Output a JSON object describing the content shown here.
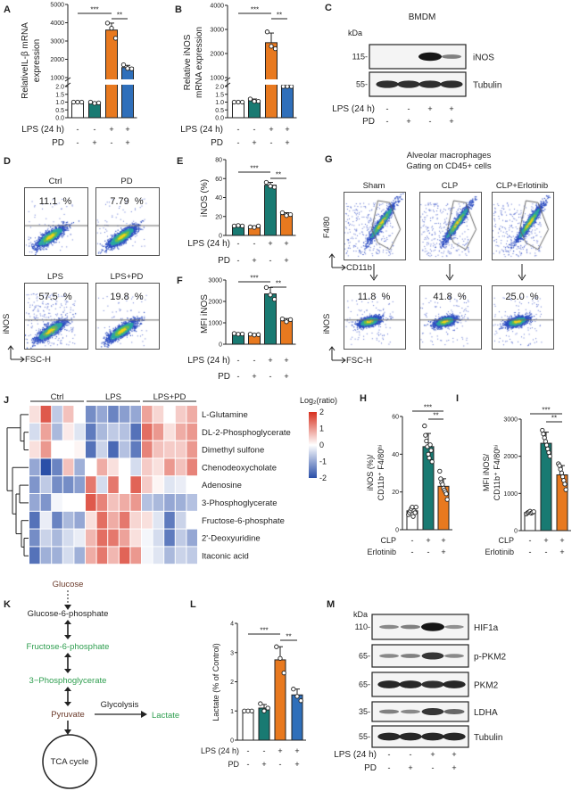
{
  "panel_labels": [
    "A",
    "B",
    "C",
    "D",
    "E",
    "F",
    "G",
    "H",
    "I",
    "J",
    "K",
    "L",
    "M"
  ],
  "colors": {
    "ctrl": "#ffffff",
    "teal": "#197a72",
    "orange": "#e8791f",
    "blue": "#2f6fba",
    "heat_low": "#2a4fa8",
    "heat_high": "#d7301f",
    "pathway_green": "#2e9e4f",
    "pathway_brown": "#6b3a2a"
  },
  "chart_data": [
    {
      "id": "A",
      "type": "bar",
      "ylabel": [
        "RelativeIL-β mRNA",
        "expression"
      ],
      "yaxis_break": [
        2,
        1000
      ],
      "yticks_lower": [
        "0.0",
        "0.5",
        "1.0",
        "1.5",
        "2.0"
      ],
      "yticks_upper": [
        "1000",
        "2000",
        "3000",
        "4000",
        "5000"
      ],
      "values": [
        1.0,
        0.95,
        3600,
        1550
      ],
      "errors": [
        0.03,
        0.05,
        380,
        120
      ],
      "points": [
        [
          1,
          1,
          1
        ],
        [
          1.0,
          0.92,
          0.95
        ],
        [
          3980,
          3700,
          3150
        ],
        [
          1700,
          1500,
          1480
        ]
      ],
      "bar_colors": [
        "ctrl",
        "teal",
        "orange",
        "blue"
      ],
      "conditions": [
        {
          "label": "LPS (24 h)",
          "signs": [
            "-",
            "-",
            "+",
            "+"
          ]
        },
        {
          "label": "PD",
          "signs": [
            "-",
            "+",
            "-",
            "+"
          ]
        }
      ],
      "significance": [
        {
          "label": "***",
          "from": 0,
          "to": 2
        },
        {
          "label": "**",
          "from": 2,
          "to": 3
        }
      ]
    },
    {
      "id": "B",
      "type": "bar",
      "ylabel": [
        "Relative iNOS",
        "mRNA expression"
      ],
      "yaxis_break": [
        2,
        1000
      ],
      "yticks_lower": [
        "0.0",
        "0.5",
        "1.0",
        "1.5",
        "2.0"
      ],
      "yticks_upper": [
        "1000",
        "2000",
        "3000",
        "4000"
      ],
      "values": [
        1.0,
        1.1,
        2450,
        500
      ],
      "errors": [
        0.03,
        0.1,
        400,
        150
      ],
      "points": [
        [
          1,
          1,
          1
        ],
        [
          1.2,
          1.05,
          1.05
        ],
        [
          2900,
          2300,
          2200
        ],
        [
          700,
          450,
          400
        ]
      ],
      "bar_colors": [
        "ctrl",
        "teal",
        "orange",
        "blue"
      ],
      "conditions": [
        {
          "label": "LPS (24 h)",
          "signs": [
            "-",
            "-",
            "+",
            "+"
          ]
        },
        {
          "label": "PD",
          "signs": [
            "-",
            "+",
            "-",
            "+"
          ]
        }
      ],
      "significance": [
        {
          "label": "***",
          "from": 0,
          "to": 2
        },
        {
          "label": "**",
          "from": 2,
          "to": 3
        }
      ]
    },
    {
      "id": "E",
      "type": "bar",
      "ylabel": [
        "iNOS (%)"
      ],
      "ylim": [
        0,
        80
      ],
      "yticks": [
        "0",
        "20",
        "40",
        "60",
        "80"
      ],
      "values": [
        10,
        9,
        53,
        22
      ],
      "errors": [
        1,
        1,
        3,
        2
      ],
      "points": [
        [
          10,
          10.5,
          10
        ],
        [
          9,
          8.5,
          10
        ],
        [
          56,
          52,
          51
        ],
        [
          24,
          21,
          22
        ]
      ],
      "bar_colors": [
        "teal",
        "orange",
        "teal",
        "orange"
      ],
      "conditions": [
        {
          "label": "LPS (24 h)",
          "signs": [
            "-",
            "-",
            "+",
            "+"
          ]
        },
        {
          "label": "PD",
          "signs": [
            "-",
            "+",
            "-",
            "+"
          ]
        }
      ],
      "significance": [
        {
          "label": "***",
          "from": 0,
          "to": 2
        },
        {
          "label": "**",
          "from": 2,
          "to": 3
        }
      ]
    },
    {
      "id": "F",
      "type": "bar",
      "ylabel": [
        "MFI iNOS"
      ],
      "ylim": [
        0,
        3000
      ],
      "yticks": [
        "0",
        "1000",
        "2000",
        "3000"
      ],
      "values": [
        480,
        450,
        2350,
        1100
      ],
      "errors": [
        40,
        40,
        300,
        100
      ],
      "points": [
        [
          500,
          470,
          480
        ],
        [
          470,
          430,
          450
        ],
        [
          2650,
          2300,
          2100
        ],
        [
          1180,
          1050,
          1150
        ]
      ],
      "bar_colors": [
        "teal",
        "orange",
        "teal",
        "orange"
      ],
      "conditions": [
        {
          "label": "LPS (24 h)",
          "signs": [
            "-",
            "-",
            "+",
            "+"
          ]
        },
        {
          "label": "PD",
          "signs": [
            "-",
            "+",
            "-",
            "+"
          ]
        }
      ],
      "significance": [
        {
          "label": "***",
          "from": 0,
          "to": 2
        },
        {
          "label": "**",
          "from": 2,
          "to": 3
        }
      ]
    },
    {
      "id": "H",
      "type": "bar",
      "ylabel": [
        "iNOS (%)/",
        "CD11b⁺ F4/80ʰⁱ"
      ],
      "ylim": [
        0,
        60
      ],
      "yticks": [
        "0",
        "20",
        "40",
        "60"
      ],
      "values": [
        10,
        44,
        23
      ],
      "errors": [
        2,
        7,
        4
      ],
      "points": [
        [
          8,
          9,
          10,
          11,
          12,
          7,
          10,
          9,
          12
        ],
        [
          55,
          50,
          47,
          44,
          40,
          38,
          45,
          42,
          36
        ],
        [
          31,
          27,
          25,
          24,
          22,
          21,
          20,
          19,
          16
        ]
      ],
      "bar_colors": [
        "ctrl",
        "teal",
        "orange"
      ],
      "conditions": [
        {
          "label": "CLP",
          "signs": [
            "-",
            "+",
            "+"
          ]
        },
        {
          "label": "Erlotinib",
          "signs": [
            "-",
            "-",
            "+"
          ]
        }
      ],
      "significance": [
        {
          "label": "***",
          "from": 0,
          "to": 2
        },
        {
          "label": "**",
          "from": 1,
          "to": 2
        }
      ]
    },
    {
      "id": "I",
      "type": "bar",
      "ylabel": [
        "MFI iNOS/",
        "CD11b⁺ F4/80ʰⁱ"
      ],
      "ylim": [
        0,
        3000
      ],
      "yticks": [
        "0",
        "1000",
        "2000",
        "3000"
      ],
      "values": [
        490,
        2350,
        1500
      ],
      "errors": [
        50,
        300,
        250
      ],
      "points": [
        [
          450,
          480,
          500,
          520,
          470,
          490,
          510
        ],
        [
          2700,
          2600,
          2500,
          2400,
          2300,
          2200,
          2100,
          2000
        ],
        [
          1800,
          1750,
          1650,
          1550,
          1450,
          1350,
          1250,
          1100
        ]
      ],
      "bar_colors": [
        "ctrl",
        "teal",
        "orange"
      ],
      "conditions": [
        {
          "label": "CLP",
          "signs": [
            "-",
            "+",
            "+"
          ]
        },
        {
          "label": "Erlotinib",
          "signs": [
            "-",
            "-",
            "+"
          ]
        }
      ],
      "significance": [
        {
          "label": "***",
          "from": 0,
          "to": 2
        },
        {
          "label": "**",
          "from": 1,
          "to": 2
        }
      ]
    },
    {
      "id": "L",
      "type": "bar",
      "ylabel": [
        "Lactate  (% of Control)"
      ],
      "ylim": [
        0,
        4
      ],
      "yticks": [
        "0",
        "1",
        "2",
        "3",
        "4"
      ],
      "values": [
        1.0,
        1.1,
        2.75,
        1.55
      ],
      "errors": [
        0.02,
        0.12,
        0.45,
        0.2
      ],
      "points": [
        [
          1,
          1,
          1
        ],
        [
          1.25,
          1.0,
          1.1
        ],
        [
          3.2,
          2.8,
          2.3
        ],
        [
          1.75,
          1.5,
          1.35
        ]
      ],
      "bar_colors": [
        "ctrl",
        "teal",
        "orange",
        "blue"
      ],
      "conditions": [
        {
          "label": "LPS (24 h)",
          "signs": [
            "-",
            "-",
            "+",
            "+"
          ]
        },
        {
          "label": "PD",
          "signs": [
            "-",
            "+",
            "-",
            "+"
          ]
        }
      ],
      "significance": [
        {
          "label": "***",
          "from": 0,
          "to": 2
        },
        {
          "label": "**",
          "from": 2,
          "to": 3
        }
      ]
    },
    {
      "id": "J",
      "type": "heatmap",
      "legend_title": "Log₂(ratio)",
      "legend_ticks": [
        "2",
        "1",
        "0",
        "-1",
        "-2"
      ],
      "range": [
        -2,
        2
      ],
      "groups": [
        "Ctrl",
        "LPS",
        "LPS+PD"
      ],
      "rows": [
        "L-Glutamine",
        "DL-2-Phosphoglycerate",
        "Dimethyl sulfone",
        "Chenodeoxycholate",
        "Adenosine",
        "3-Phosphoglycerate",
        "Fructose-6-phosphate",
        "2'-Deoxyuridine",
        "Itaconic acid"
      ],
      "values": [
        [
          0.3,
          1.6,
          -0.6,
          0.6,
          0,
          -1.3,
          -1,
          -1.4,
          -1.1,
          -1,
          0.9,
          0.4,
          0,
          0.5,
          0.8
        ],
        [
          -0.4,
          0.9,
          -0.8,
          0.2,
          -0.3,
          -1.5,
          -0.8,
          -0.6,
          -0.7,
          -1.6,
          1.4,
          1,
          0.3,
          0.8,
          1
        ],
        [
          0.3,
          1,
          0,
          0,
          0.1,
          -1.6,
          -0.5,
          -1.7,
          -0.7,
          -1.5,
          1.2,
          0.6,
          0.5,
          0.5,
          1
        ],
        [
          -1,
          -2,
          -1.4,
          0.6,
          -0.9,
          0,
          0.8,
          0.3,
          0,
          -0.4,
          0.5,
          0.3,
          1,
          0.6,
          1.2
        ],
        [
          -1.2,
          -0.6,
          -1.3,
          -1.3,
          -1.1,
          1.3,
          -0.4,
          1.3,
          0,
          1.5,
          0.5,
          0.1,
          -0.3,
          -0.2,
          0
        ],
        [
          -1,
          -1.2,
          -0.1,
          0,
          0,
          1.6,
          1.2,
          0.6,
          0.8,
          1,
          -0.7,
          -0.8,
          -1,
          -0.9,
          -0.7
        ],
        [
          -1.6,
          -0.2,
          -1.4,
          -0.8,
          -1,
          0.3,
          1.4,
          0.8,
          1.3,
          0.4,
          0.3,
          -0.3,
          -1.5,
          -0.5,
          0
        ],
        [
          -1.3,
          -0.5,
          -0.8,
          -0.4,
          -0.2,
          0.7,
          1.4,
          1.3,
          0.9,
          0.3,
          -0.1,
          -0.4,
          -1.5,
          -0.6,
          -1
        ],
        [
          -1.6,
          -0.9,
          -0.9,
          -0.4,
          -0.9,
          0.8,
          1.3,
          0.7,
          1.5,
          1,
          -0.1,
          -0.3,
          -0.8,
          -0.5,
          -0.6
        ]
      ]
    }
  ],
  "blot_C": {
    "title": "BMDM",
    "unit": "kDa",
    "bands": [
      {
        "name": "iNOS",
        "mw": "115-",
        "intensity": [
          0,
          0,
          1,
          0.35
        ]
      },
      {
        "name": "Tubulin",
        "mw": "55-",
        "intensity": [
          0.85,
          0.85,
          0.85,
          0.85
        ]
      }
    ],
    "conditions": [
      {
        "label": "LPS (24 h)",
        "signs": [
          "-",
          "-",
          "+",
          "+"
        ]
      },
      {
        "label": "PD",
        "signs": [
          "-",
          "+",
          "-",
          "+"
        ]
      }
    ]
  },
  "blot_M": {
    "unit": "kDa",
    "bands": [
      {
        "name": "HIF1a",
        "mw": "110-",
        "intensity": [
          0.3,
          0.35,
          1,
          0.25
        ]
      },
      {
        "name": "p-PKM2",
        "mw": "65-",
        "intensity": [
          0.3,
          0.35,
          0.8,
          0.3
        ]
      },
      {
        "name": "PKM2",
        "mw": "65-",
        "intensity": [
          0.9,
          0.9,
          0.85,
          0.9
        ]
      },
      {
        "name": "LDHA",
        "mw": "35-",
        "intensity": [
          0.35,
          0.3,
          0.8,
          0.5
        ]
      },
      {
        "name": "Tubulin",
        "mw": "55-",
        "intensity": [
          0.9,
          0.9,
          0.9,
          0.9
        ]
      }
    ],
    "conditions": [
      {
        "label": "LPS (24 h)",
        "signs": [
          "-",
          "-",
          "+",
          "+"
        ]
      },
      {
        "label": "PD",
        "signs": [
          "-",
          "+",
          "-",
          "+"
        ]
      }
    ]
  },
  "flow_D": {
    "plots": [
      {
        "title": "Ctrl",
        "percent": "11.1  %"
      },
      {
        "title": "PD",
        "percent": "7.79  %"
      },
      {
        "title": "LPS",
        "percent": "57.5  %"
      },
      {
        "title": "LPS+PD",
        "percent": "19.8  %"
      }
    ],
    "y_axis": "iNOS",
    "x_axis": "FSC-H"
  },
  "flow_G": {
    "title_line1": "Alveolar macrophages",
    "title_line2": "Gating on CD45+ cells",
    "groups": [
      "Sham",
      "CLP",
      "CLP+Erlotinib"
    ],
    "percents": [
      "11.8  %",
      "41.8  %",
      "25.0  %"
    ],
    "top_y_axis": "F4/80",
    "top_x_axis": "CD11b",
    "bottom_y_axis": "iNOS",
    "bottom_x_axis": "FSC-H"
  },
  "pathway_K": {
    "glucose": "Glucose",
    "g6p": "Glucose-6-phosphate",
    "f6p": "Fructose-6-phosphate",
    "pg3": "3−Phosphoglycerate",
    "pyruvate": "Pyruvate",
    "glycolysis": "Glycolysis",
    "lactate": "Lactate",
    "tca": "TCA cycle"
  }
}
